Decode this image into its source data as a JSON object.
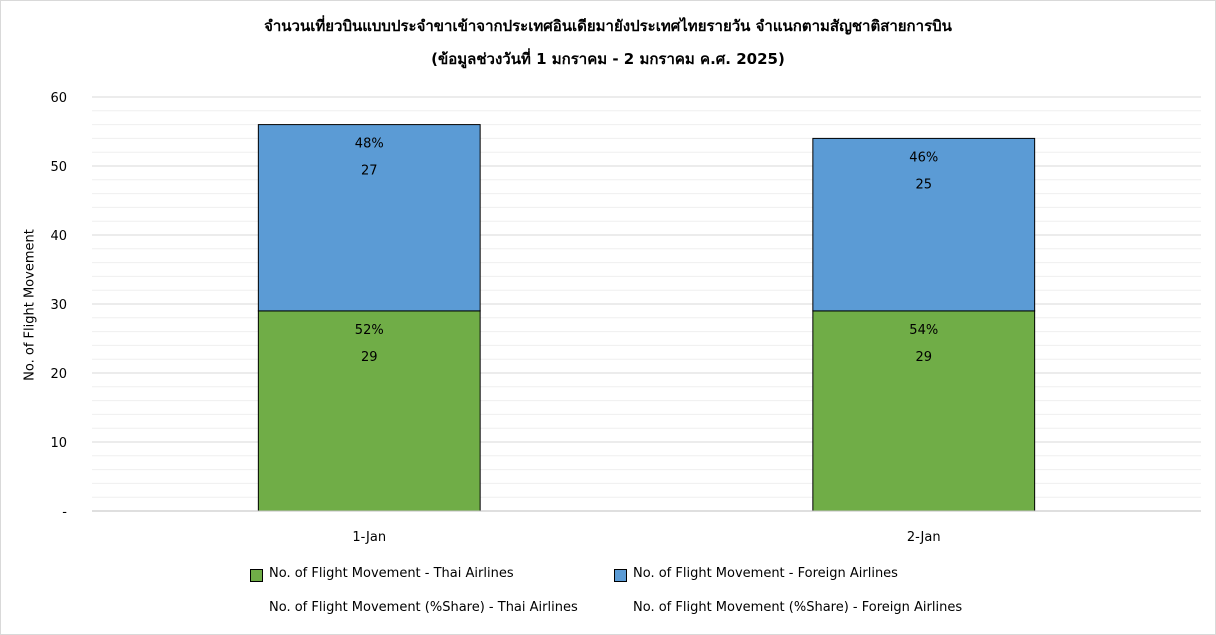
{
  "chart_data": {
    "type": "bar",
    "stacked": true,
    "title": "จำนวนเที่ยวบินแบบประจำขาเข้าจากประเทศอินเดียมายังประเทศไทยรายวัน  จำแนกตามสัญชาติสายการบิน",
    "subtitle": "(ข้อมูลช่วงวันที่ 1 มกราคม - 2 มกราคม ค.ศ. 2025)",
    "xlabel": "",
    "ylabel": "No. of Flight Movement",
    "ylim": [
      0,
      60
    ],
    "yticks": [
      "-",
      "10",
      "20",
      "30",
      "40",
      "50",
      "60"
    ],
    "categories": [
      "1-Jan",
      "2-Jan"
    ],
    "grid": true,
    "legend_position": "bottom",
    "series": [
      {
        "name": "No. of Flight Movement - Thai Airlines",
        "color": "#70ad47",
        "values": [
          29,
          29
        ],
        "share_labels": [
          "52%",
          "54%"
        ]
      },
      {
        "name": "No. of Flight Movement - Foreign Airlines",
        "color": "#5b9bd5",
        "values": [
          27,
          25
        ],
        "share_labels": [
          "48%",
          "46%"
        ]
      }
    ],
    "share_series": [
      "No. of Flight Movement (%Share) - Thai Airlines",
      "No. of Flight Movement (%Share) - Foreign Airlines"
    ]
  }
}
